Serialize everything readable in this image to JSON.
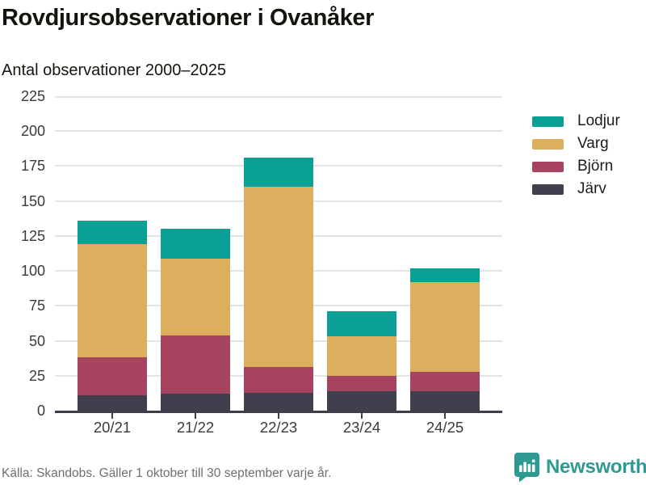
{
  "title": "Rovdjursobservationer i Ovanåker",
  "subtitle": "Antal observationer 2000–2025",
  "chart_data": {
    "type": "bar",
    "stacked": true,
    "title": "Rovdjursobservationer i Ovanåker",
    "subtitle": "Antal observationer 2000–2025",
    "categories": [
      "20/21",
      "21/22",
      "22/23",
      "23/24",
      "24/25"
    ],
    "series": [
      {
        "name": "Järv",
        "color": "#413e4e",
        "values": [
          11,
          12,
          13,
          14,
          14
        ]
      },
      {
        "name": "Björn",
        "color": "#a6435f",
        "values": [
          27,
          42,
          18,
          11,
          14
        ]
      },
      {
        "name": "Varg",
        "color": "#dcaf5f",
        "values": [
          81,
          55,
          129,
          28,
          64
        ]
      },
      {
        "name": "Lodjur",
        "color": "#0aa096",
        "values": [
          17,
          21,
          21,
          18,
          10
        ]
      }
    ],
    "totals": [
      136,
      130,
      181,
      71,
      102
    ],
    "legend": [
      "Lodjur",
      "Varg",
      "Björn",
      "Järv"
    ],
    "legend_position": "right",
    "ylim": [
      0,
      225
    ],
    "y_ticks": [
      0,
      25,
      50,
      75,
      100,
      125,
      150,
      175,
      200,
      225
    ],
    "grid": true,
    "xlabel": "",
    "ylabel": ""
  },
  "footer": {
    "source": "Källa: Skandobs. Gäller 1 oktober till 30 september varje år.",
    "brand": "Newsworthy"
  },
  "colors": {
    "axis": "#403d4d",
    "grid": "#e4e4e4",
    "text_dark": "#14140d",
    "tick_text": "#3a3a3a",
    "source_text": "#6f6f6f",
    "brand_teal": "#2f9a94"
  }
}
